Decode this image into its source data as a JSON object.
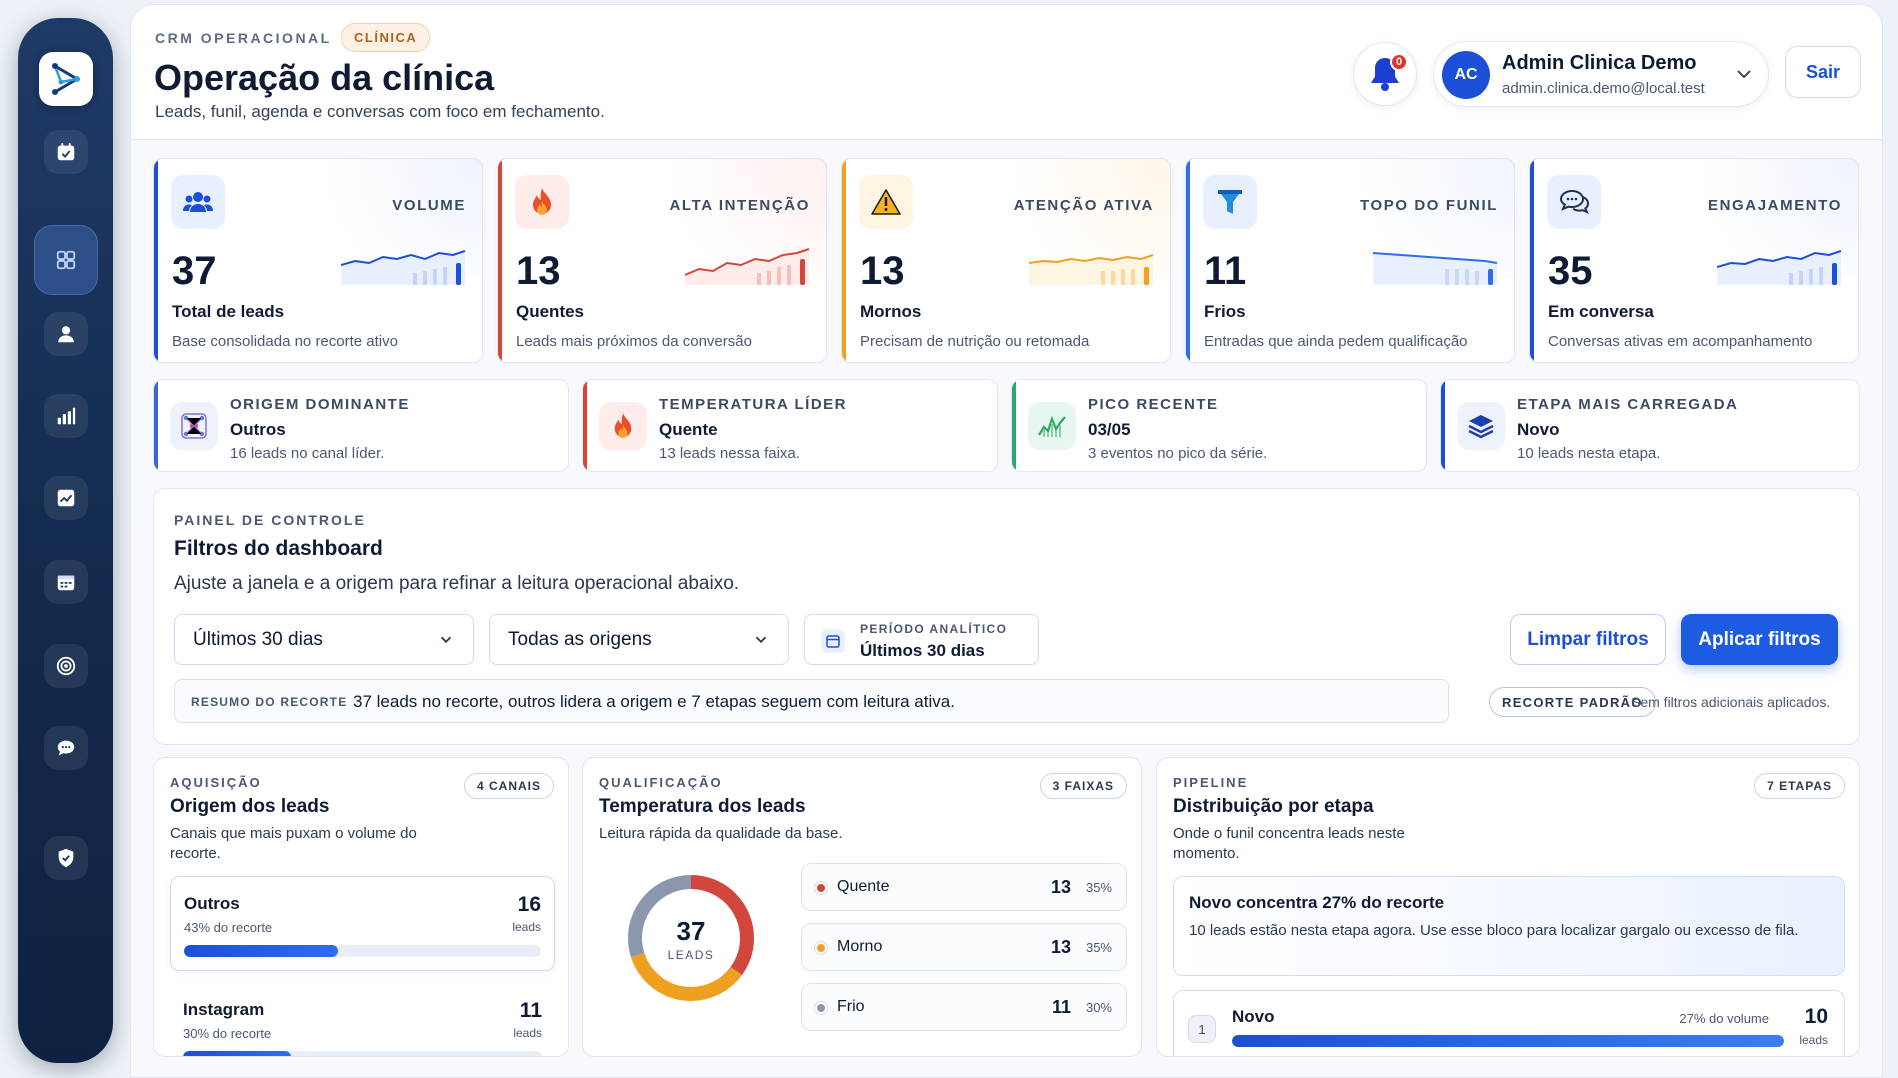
{
  "header": {
    "eyebrow": "CRM OPERACIONAL",
    "tag": "CLÍNICA",
    "title": "Operação da clínica",
    "subtitle": "Leads, funil, agenda e conversas com foco em fechamento.",
    "notification_count": "0",
    "user": {
      "initials": "AC",
      "name": "Admin Clinica Demo",
      "email": "admin.clinica.demo@local.test"
    },
    "logout_label": "Sair"
  },
  "sidebar": {
    "items": [
      "calendar-check-icon",
      "dashboard-grid-icon",
      "user-icon",
      "bar-chart-icon",
      "trend-chart-icon",
      "calendar-icon",
      "target-icon",
      "chat-icon",
      "shield-icon"
    ],
    "active": "dashboard-grid-icon"
  },
  "kpis": [
    {
      "label": "VOLUME",
      "value": "37",
      "name": "Total de leads",
      "desc": "Base consolidada no recorte ativo",
      "color": "#1d4fd6",
      "icon": "users-icon"
    },
    {
      "label": "ALTA INTENÇÃO",
      "value": "13",
      "name": "Quentes",
      "desc": "Leads mais próximos da conversão",
      "color": "#d2473d",
      "icon": "fire-icon"
    },
    {
      "label": "ATENÇÃO ATIVA",
      "value": "13",
      "name": "Mornos",
      "desc": "Precisam de nutrição ou retomada",
      "color": "#f0a020",
      "icon": "warning-icon"
    },
    {
      "label": "TOPO DO FUNIL",
      "value": "11",
      "name": "Frios",
      "desc": "Entradas que ainda pedem qualificação",
      "color": "#2f6cf0",
      "icon": "funnel-icon"
    },
    {
      "label": "ENGAJAMENTO",
      "value": "35",
      "name": "Em conversa",
      "desc": "Conversas ativas em acompanhamento",
      "color": "#1d4fd6",
      "icon": "chat-bubbles-icon"
    }
  ],
  "insights": [
    {
      "title": "ORIGEM DOMINANTE",
      "value": "Outros",
      "desc": "16 leads no canal líder.",
      "color": "#3d63d8",
      "icon": "network-icon"
    },
    {
      "title": "TEMPERATURA LÍDER",
      "value": "Quente",
      "desc": "13 leads nessa faixa.",
      "color": "#d2473d",
      "icon": "fire-icon"
    },
    {
      "title": "PICO RECENTE",
      "value": "03/05",
      "desc": "3 eventos no pico da série.",
      "color": "#2ea86a",
      "icon": "spike-chart-icon"
    },
    {
      "title": "ETAPA MAIS CARREGADA",
      "value": "Novo",
      "desc": "10 leads nesta etapa.",
      "color": "#1d4fd6",
      "icon": "layers-icon"
    }
  ],
  "filters": {
    "eyebrow": "PAINEL DE CONTROLE",
    "title": "Filtros do dashboard",
    "subtitle": "Ajuste a janela e a origem para refinar a leitura operacional abaixo.",
    "period_select": "Últimos 30 dias",
    "origin_select": "Todas as origens",
    "period_label": "PERÍODO ANALÍTICO",
    "period_value": "Últimos 30 dias",
    "clear_label": "Limpar filtros",
    "apply_label": "Aplicar filtros",
    "summary_label": "RESUMO DO RECORTE",
    "summary_text": "37 leads no recorte, outros lidera a origem e 7 etapas seguem com leitura ativa.",
    "default_chip": "RECORTE PADRÃO",
    "default_note": "Sem filtros adicionais aplicados."
  },
  "acquisition": {
    "eyebrow": "AQUISIÇÃO",
    "title": "Origem dos leads",
    "desc": "Canais que mais puxam o volume do recorte.",
    "chip": "4 CANAIS",
    "sources": [
      {
        "name": "Outros",
        "pct_text": "43% do recorte",
        "count": "16",
        "unit": "leads",
        "fraction": 0.43
      },
      {
        "name": "Instagram",
        "pct_text": "30% do recorte",
        "count": "11",
        "unit": "leads",
        "fraction": 0.3
      }
    ]
  },
  "qualification": {
    "eyebrow": "QUALIFICAÇÃO",
    "title": "Temperatura dos leads",
    "desc": "Leitura rápida da qualidade da base.",
    "chip": "3 FAIXAS",
    "total": "37",
    "total_label": "LEADS",
    "rows": [
      {
        "name": "Quente",
        "count": "13",
        "pct": "35%",
        "fraction": 0.35,
        "color": "#d2473d"
      },
      {
        "name": "Morno",
        "count": "13",
        "pct": "35%",
        "fraction": 0.35,
        "color": "#f0a020"
      },
      {
        "name": "Frio",
        "count": "11",
        "pct": "30%",
        "fraction": 0.3,
        "color": "#8a97ad"
      }
    ]
  },
  "pipeline": {
    "eyebrow": "PIPELINE",
    "title": "Distribuição por etapa",
    "desc": "Onde o funil concentra leads neste momento.",
    "chip": "7 ETAPAS",
    "hero_title": "Novo concentra 27% do recorte",
    "hero_desc": "10 leads estão nesta etapa agora. Use esse bloco para localizar gargalo ou excesso de fila.",
    "stages": [
      {
        "index": "1",
        "name": "Novo",
        "pct_text": "27% do volume",
        "count": "10",
        "unit": "leads",
        "fraction": 0.27
      }
    ]
  }
}
